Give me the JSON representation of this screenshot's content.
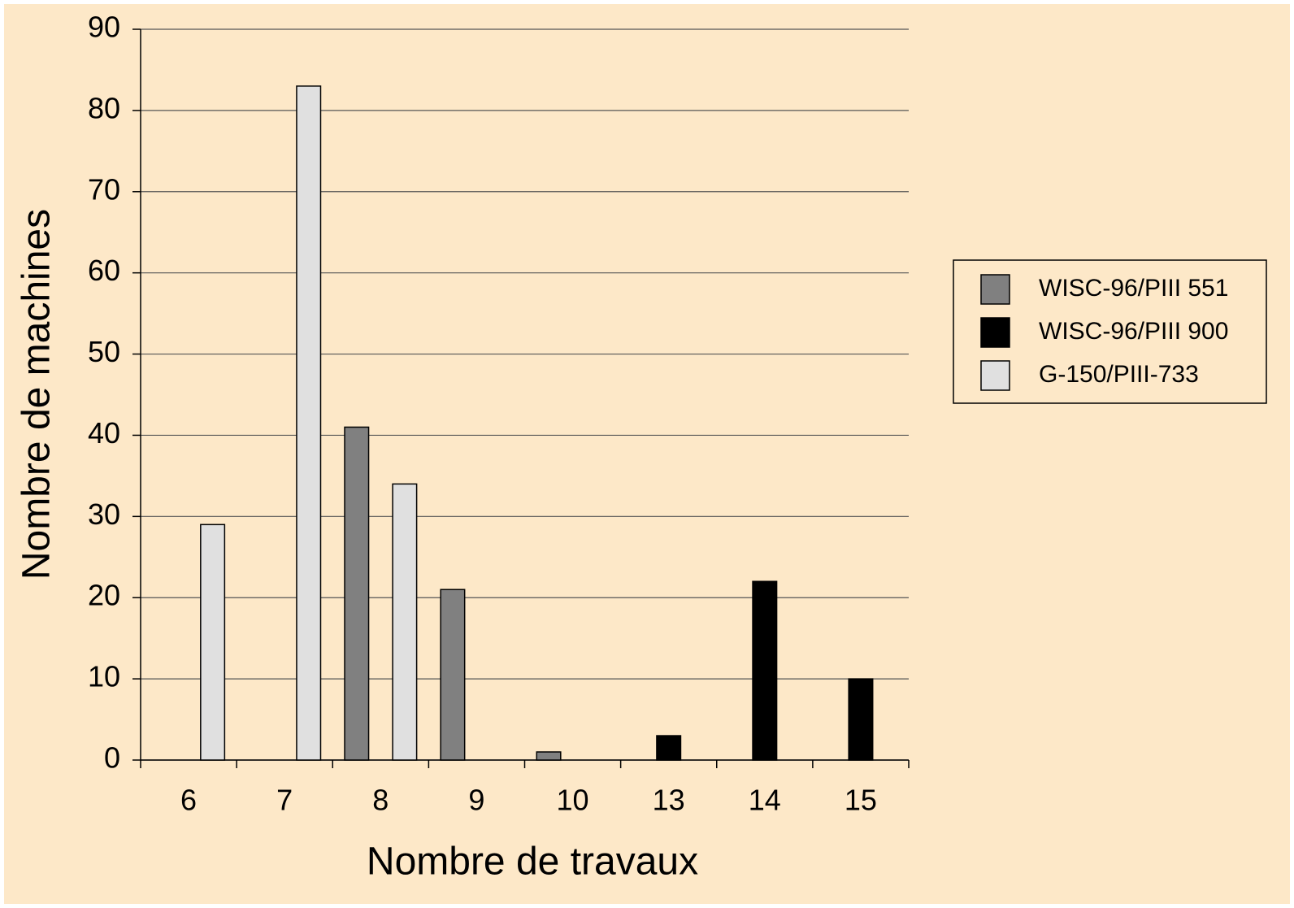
{
  "chart_data": {
    "type": "bar",
    "x_label": "Nombre de travaux",
    "y_label": "Nombre de machines",
    "categories": [
      "6",
      "7",
      "8",
      "9",
      "10",
      "13",
      "14",
      "15"
    ],
    "series": [
      {
        "name": "WISC-96/PIII 551",
        "color": "#808080",
        "values": [
          0,
          0,
          41,
          21,
          1,
          0,
          0,
          0
        ]
      },
      {
        "name": "WISC-96/PIII 900",
        "color": "#000000",
        "values": [
          0,
          0,
          0,
          0,
          0,
          3,
          22,
          10
        ]
      },
      {
        "name": "G-150/PIII-733",
        "color": "#e0e0e0",
        "values": [
          29,
          83,
          34,
          0,
          0,
          0,
          0,
          0
        ]
      }
    ],
    "ylim": [
      0,
      90
    ],
    "yticks": [
      0,
      10,
      20,
      30,
      40,
      50,
      60,
      70,
      80,
      90
    ],
    "grid": true,
    "legend": "right"
  }
}
